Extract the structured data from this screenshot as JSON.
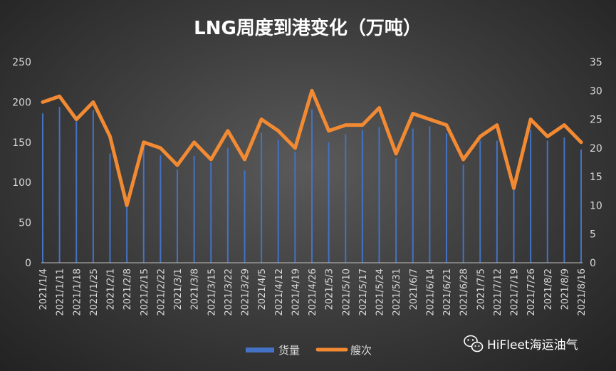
{
  "chart_data": {
    "type": "bar",
    "title": "LNG周度到港变化（万吨）",
    "categories": [
      "2021/1/4",
      "2021/1/11",
      "2021/1/18",
      "2021/1/25",
      "2021/2/1",
      "2021/2/8",
      "2021/2/15",
      "2021/2/22",
      "2021/3/1",
      "2021/3/8",
      "2021/3/15",
      "2021/3/22",
      "2021/3/29",
      "2021/4/5",
      "2021/4/12",
      "2021/4/19",
      "2021/4/26",
      "2021/5/3",
      "2021/5/10",
      "2021/5/17",
      "2021/5/24",
      "2021/5/31",
      "2021/6/7",
      "2021/6/14",
      "2021/6/21",
      "2021/6/28",
      "2021/7/5",
      "2021/7/12",
      "2021/7/19",
      "2021/7/26",
      "2021/8/2",
      "2021/8/9",
      "2021/8/16"
    ],
    "series": [
      {
        "name": "货量",
        "type": "bar",
        "axis": "left",
        "color": "#4472c4",
        "values": [
          186,
          194,
          176,
          190,
          136,
          72,
          150,
          134,
          116,
          133,
          125,
          143,
          115,
          162,
          153,
          138,
          191,
          150,
          160,
          165,
          169,
          130,
          167,
          170,
          161,
          122,
          152,
          152,
          92,
          165,
          152,
          156,
          141
        ]
      },
      {
        "name": "艘次",
        "type": "line",
        "axis": "right",
        "color": "#f28a33",
        "values": [
          28,
          29,
          25,
          28,
          22,
          10,
          21,
          20,
          17,
          21,
          18,
          23,
          18,
          25,
          23,
          20,
          30,
          23,
          24,
          24,
          27,
          19,
          26,
          25,
          24,
          18,
          22,
          24,
          13,
          25,
          22,
          24,
          21
        ]
      }
    ],
    "y_left": {
      "min": 0,
      "max": 250,
      "ticks": [
        0,
        50,
        100,
        150,
        200,
        250
      ]
    },
    "y_right": {
      "min": 0,
      "max": 35,
      "ticks": [
        0,
        5,
        10,
        15,
        20,
        25,
        30,
        35
      ]
    },
    "grid": false,
    "legend_position": "bottom"
  },
  "watermark": {
    "icon": "wechat-icon",
    "text": "HiFleet海运油气"
  }
}
